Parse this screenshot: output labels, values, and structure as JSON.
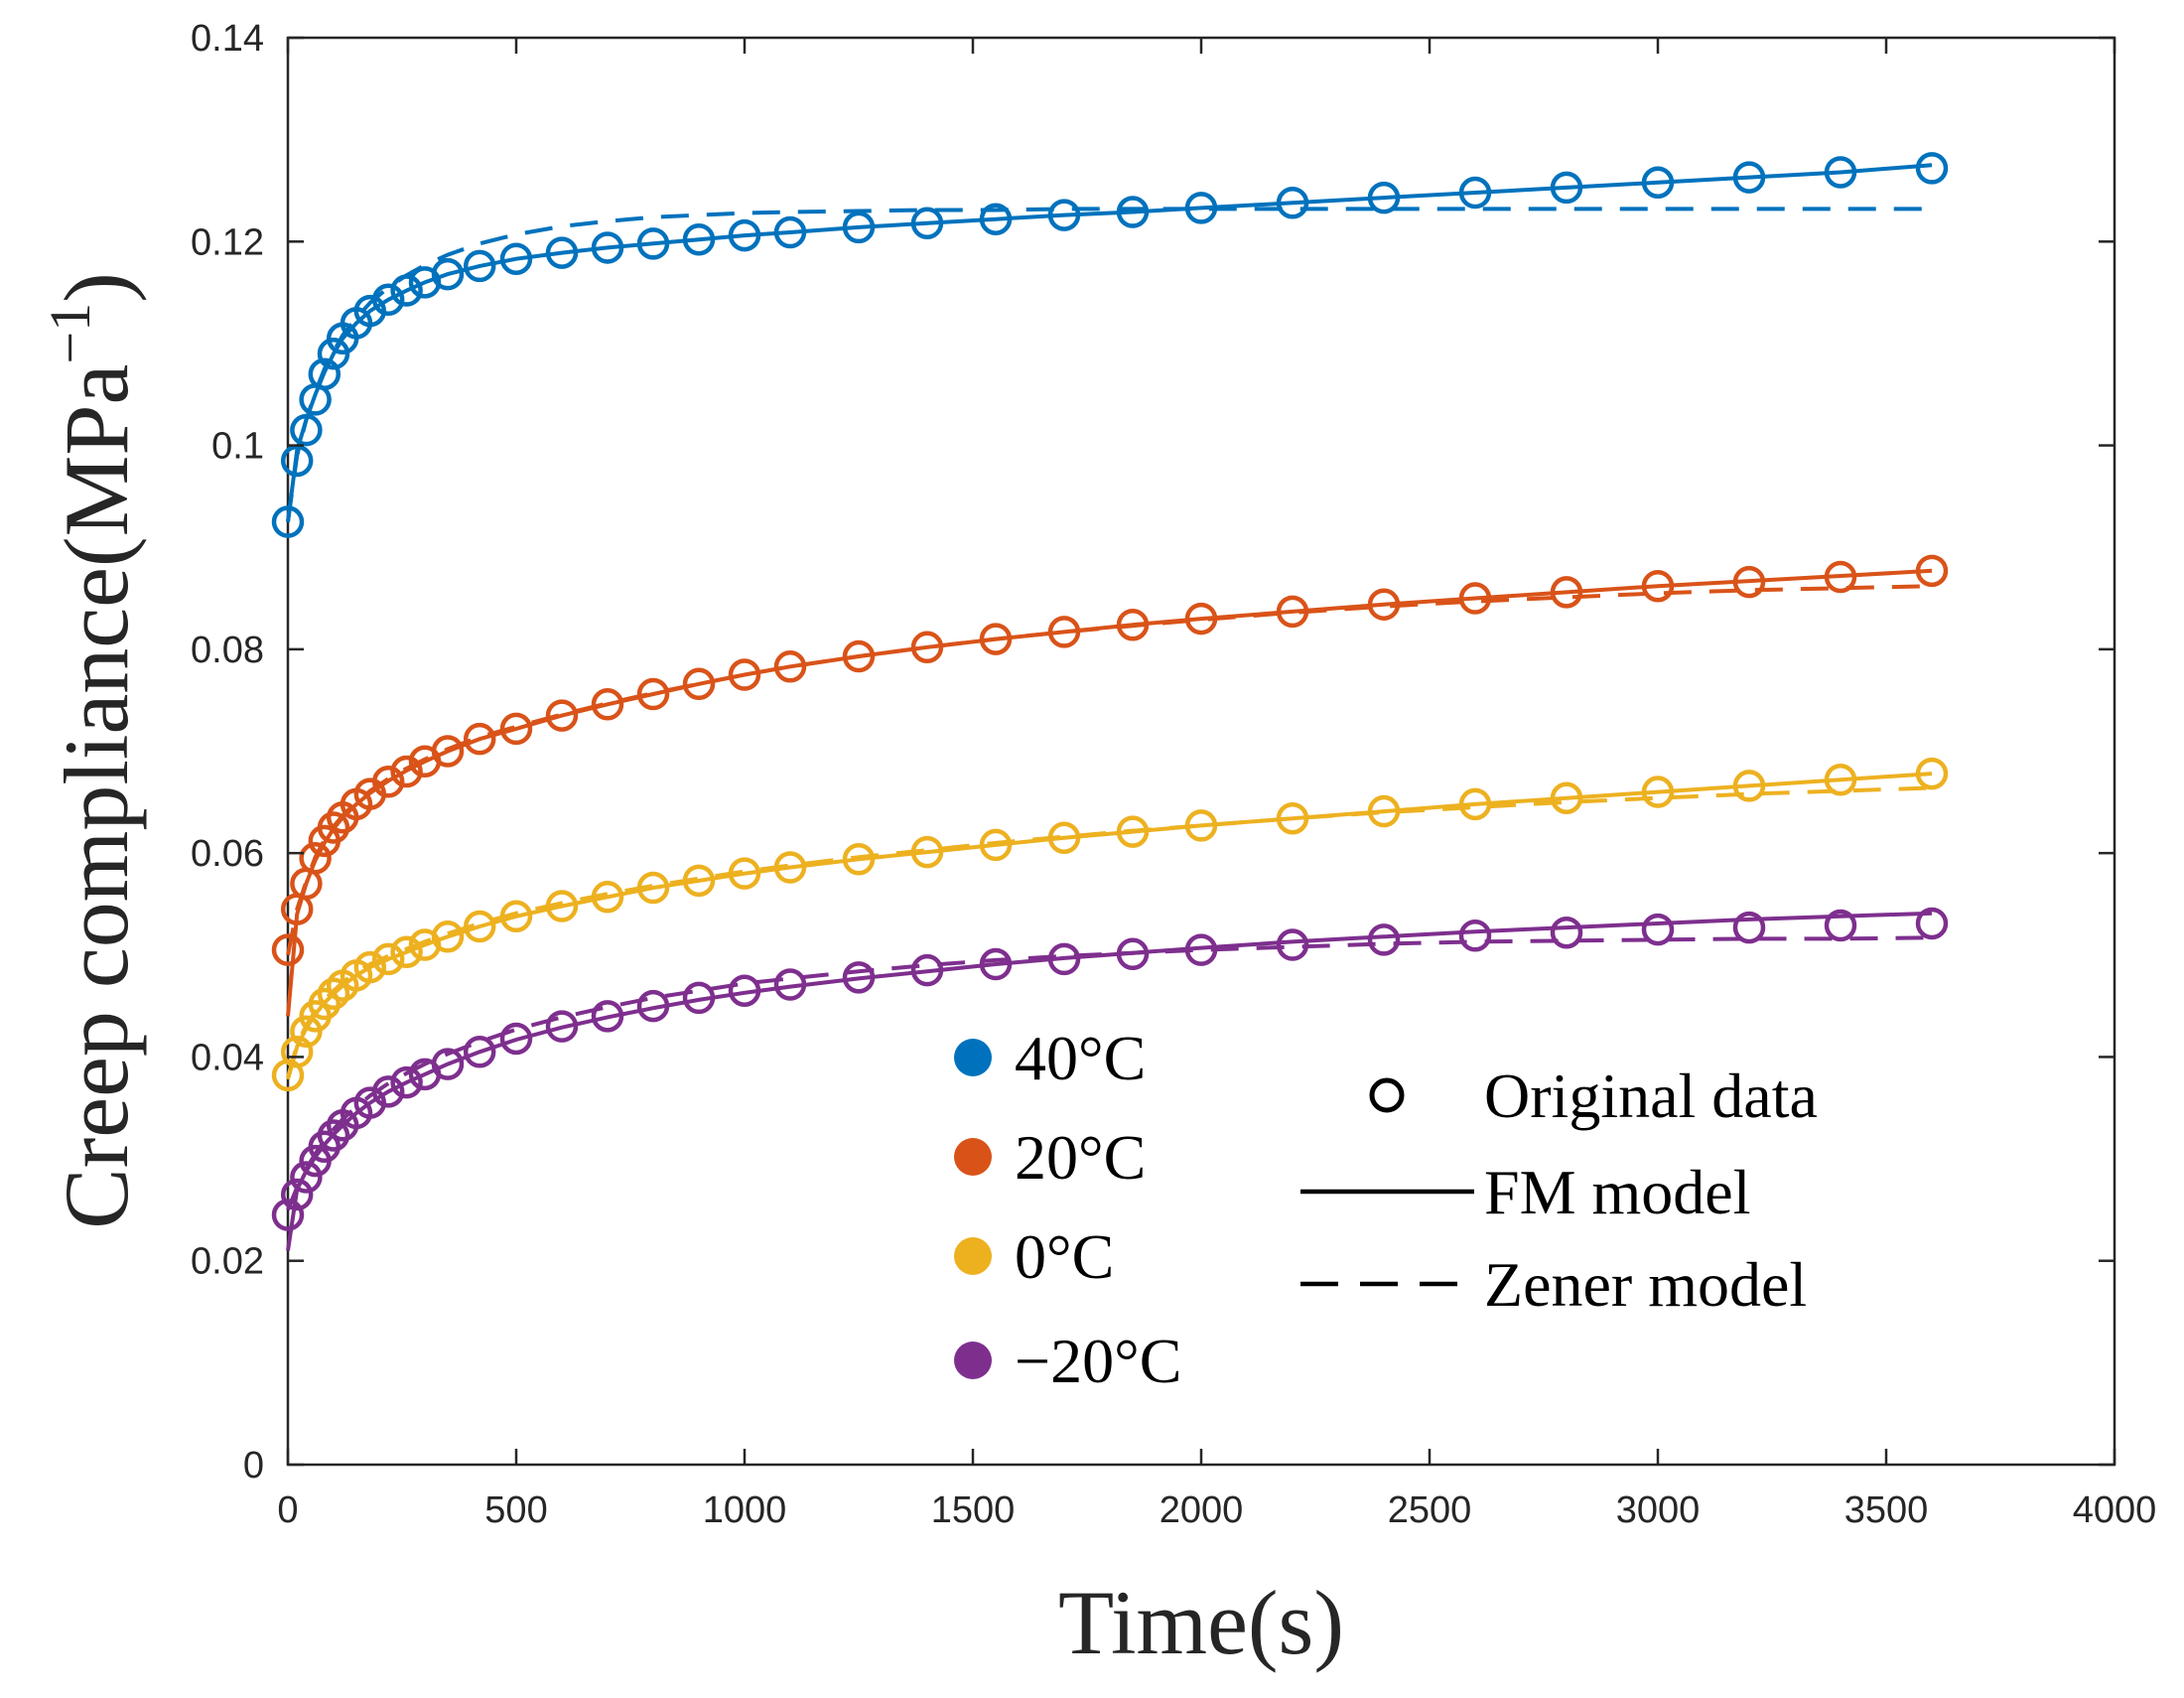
{
  "chart_data": {
    "type": "scatter",
    "xlabel": "Time(s)",
    "ylabel": "Creep compliance(MPa",
    "ylabel_sup": "−1",
    "ylabel_close": ")",
    "xlim": [
      0,
      4000
    ],
    "ylim": [
      0,
      0.14
    ],
    "xticks": [
      0,
      500,
      1000,
      1500,
      2000,
      2500,
      3000,
      3500,
      4000
    ],
    "xtick_labels": [
      "0",
      "500",
      "1000",
      "1500",
      "2000",
      "2500",
      "3000",
      "3500",
      "4000"
    ],
    "yticks": [
      0,
      0.02,
      0.04,
      0.06,
      0.08,
      0.1,
      0.12,
      0.14
    ],
    "ytick_labels": [
      "0",
      "0.02",
      "0.04",
      "0.06",
      "0.08",
      "0.1",
      "0.12",
      "0.14"
    ],
    "grid": false,
    "series": [
      {
        "name": "40°C",
        "color": "#0072BD",
        "data": {
          "t": [
            0,
            20,
            40,
            60,
            80,
            100,
            120,
            150,
            180,
            220,
            260,
            300,
            350,
            420,
            500,
            600,
            700,
            800,
            900,
            1000,
            1100,
            1250,
            1400,
            1550,
            1700,
            1850,
            2000,
            2200,
            2400,
            2600,
            2800,
            3000,
            3200,
            3400,
            3600
          ],
          "original": [
            0.0925,
            0.0985,
            0.1015,
            0.1045,
            0.107,
            0.109,
            0.1105,
            0.112,
            0.1132,
            0.1143,
            0.1152,
            0.116,
            0.1168,
            0.1176,
            0.1183,
            0.1189,
            0.1194,
            0.1198,
            0.1202,
            0.1206,
            0.1209,
            0.1214,
            0.1218,
            0.1222,
            0.1226,
            0.1229,
            0.1233,
            0.1238,
            0.1243,
            0.1248,
            0.1253,
            0.1258,
            0.1263,
            0.1268,
            0.1272
          ],
          "fm": [
            0.0925,
            0.0995,
            0.1025,
            0.105,
            0.1072,
            0.109,
            0.1105,
            0.112,
            0.1132,
            0.1143,
            0.1152,
            0.116,
            0.1168,
            0.1176,
            0.1183,
            0.1189,
            0.1194,
            0.1198,
            0.1202,
            0.1206,
            0.1209,
            0.1214,
            0.1218,
            0.1222,
            0.1226,
            0.1229,
            0.1233,
            0.1238,
            0.1243,
            0.1248,
            0.1253,
            0.1258,
            0.1263,
            0.1268,
            0.1275
          ],
          "zener": [
            0.0925,
            0.099,
            0.1025,
            0.1052,
            0.1075,
            0.1092,
            0.1108,
            0.1125,
            0.114,
            0.1155,
            0.1167,
            0.1177,
            0.1187,
            0.1198,
            0.1207,
            0.1215,
            0.122,
            0.1224,
            0.1226,
            0.1228,
            0.1229,
            0.123,
            0.1231,
            0.1231,
            0.1232,
            0.1232,
            0.1232,
            0.1232,
            0.1232,
            0.1232,
            0.1232,
            0.1232,
            0.1232,
            0.1232,
            0.1232
          ]
        }
      },
      {
        "name": "20°C",
        "color": "#D95319",
        "data": {
          "t": [
            0,
            20,
            40,
            60,
            80,
            100,
            120,
            150,
            180,
            220,
            260,
            300,
            350,
            420,
            500,
            600,
            700,
            800,
            900,
            1000,
            1100,
            1250,
            1400,
            1550,
            1700,
            1850,
            2000,
            2200,
            2400,
            2600,
            2800,
            3000,
            3200,
            3400,
            3600
          ],
          "original": [
            0.0505,
            0.0545,
            0.057,
            0.0595,
            0.0612,
            0.0625,
            0.0635,
            0.0648,
            0.0658,
            0.067,
            0.068,
            0.069,
            0.07,
            0.0712,
            0.0722,
            0.0735,
            0.0746,
            0.0756,
            0.0766,
            0.0775,
            0.0783,
            0.0793,
            0.0802,
            0.081,
            0.0817,
            0.0824,
            0.083,
            0.0837,
            0.0844,
            0.085,
            0.0856,
            0.0862,
            0.0866,
            0.0871,
            0.0877
          ],
          "fm": [
            0.044,
            0.054,
            0.057,
            0.0593,
            0.061,
            0.0624,
            0.0635,
            0.0648,
            0.0659,
            0.0671,
            0.0681,
            0.069,
            0.07,
            0.0712,
            0.0722,
            0.0735,
            0.0746,
            0.0756,
            0.0766,
            0.0775,
            0.0783,
            0.0793,
            0.0802,
            0.081,
            0.0817,
            0.0824,
            0.083,
            0.0837,
            0.0844,
            0.085,
            0.0856,
            0.0862,
            0.0867,
            0.0872,
            0.0877
          ],
          "zener": [
            0.05,
            0.0545,
            0.0572,
            0.0596,
            0.0613,
            0.0626,
            0.0637,
            0.065,
            0.0661,
            0.0673,
            0.0683,
            0.0692,
            0.0702,
            0.0714,
            0.0724,
            0.0736,
            0.0747,
            0.0757,
            0.0766,
            0.0775,
            0.0783,
            0.0793,
            0.0802,
            0.081,
            0.0817,
            0.0823,
            0.0829,
            0.0836,
            0.0842,
            0.0847,
            0.0851,
            0.0855,
            0.0858,
            0.086,
            0.0862
          ]
        }
      },
      {
        "name": "0°C",
        "color": "#EDB120",
        "data": {
          "t": [
            0,
            20,
            40,
            60,
            80,
            100,
            120,
            150,
            180,
            220,
            260,
            300,
            350,
            420,
            500,
            600,
            700,
            800,
            900,
            1000,
            1100,
            1250,
            1400,
            1550,
            1700,
            1850,
            2000,
            2200,
            2400,
            2600,
            2800,
            3000,
            3200,
            3400,
            3600
          ],
          "original": [
            0.0382,
            0.0405,
            0.0425,
            0.044,
            0.0452,
            0.0462,
            0.047,
            0.048,
            0.0488,
            0.0496,
            0.0503,
            0.051,
            0.0518,
            0.0528,
            0.0538,
            0.0548,
            0.0557,
            0.0566,
            0.0573,
            0.058,
            0.0586,
            0.0594,
            0.0601,
            0.0608,
            0.0615,
            0.0621,
            0.0627,
            0.0634,
            0.0641,
            0.0648,
            0.0654,
            0.066,
            0.0666,
            0.0672,
            0.0678
          ],
          "fm": [
            0.0378,
            0.041,
            0.0428,
            0.0442,
            0.0453,
            0.0462,
            0.047,
            0.048,
            0.0488,
            0.0496,
            0.0503,
            0.051,
            0.0518,
            0.0528,
            0.0538,
            0.0548,
            0.0557,
            0.0566,
            0.0573,
            0.058,
            0.0586,
            0.0594,
            0.0601,
            0.0608,
            0.0615,
            0.0621,
            0.0627,
            0.0634,
            0.0641,
            0.0648,
            0.0654,
            0.066,
            0.0666,
            0.0672,
            0.0678
          ],
          "zener": [
            0.038,
            0.0412,
            0.0431,
            0.0445,
            0.0456,
            0.0465,
            0.0473,
            0.0483,
            0.0491,
            0.0499,
            0.0506,
            0.0513,
            0.0521,
            0.0531,
            0.0541,
            0.0551,
            0.056,
            0.0568,
            0.0575,
            0.0582,
            0.0588,
            0.0596,
            0.0603,
            0.061,
            0.0616,
            0.0622,
            0.0627,
            0.0634,
            0.064,
            0.0645,
            0.065,
            0.0654,
            0.0658,
            0.0661,
            0.0664
          ]
        }
      },
      {
        "name": "−20°C",
        "color": "#7E2F8E",
        "data": {
          "t": [
            0,
            20,
            40,
            60,
            80,
            100,
            120,
            150,
            180,
            220,
            260,
            300,
            350,
            420,
            500,
            600,
            700,
            800,
            900,
            1000,
            1100,
            1250,
            1400,
            1550,
            1700,
            1850,
            2000,
            2200,
            2400,
            2600,
            2800,
            3000,
            3200,
            3400,
            3600
          ],
          "original": [
            0.0245,
            0.0265,
            0.0282,
            0.0298,
            0.0312,
            0.0323,
            0.0333,
            0.0345,
            0.0355,
            0.0366,
            0.0375,
            0.0383,
            0.0393,
            0.0405,
            0.0418,
            0.043,
            0.044,
            0.045,
            0.0458,
            0.0465,
            0.0471,
            0.0478,
            0.0485,
            0.0491,
            0.0496,
            0.0501,
            0.0505,
            0.051,
            0.0515,
            0.0519,
            0.0522,
            0.0525,
            0.0527,
            0.0529,
            0.0531
          ],
          "fm": [
            0.021,
            0.027,
            0.0288,
            0.0302,
            0.0314,
            0.0324,
            0.0333,
            0.0345,
            0.0355,
            0.0366,
            0.0375,
            0.0383,
            0.0393,
            0.0405,
            0.0417,
            0.0429,
            0.0439,
            0.0448,
            0.0456,
            0.0463,
            0.0469,
            0.0477,
            0.0484,
            0.0491,
            0.0497,
            0.0502,
            0.0507,
            0.0513,
            0.0518,
            0.0523,
            0.0527,
            0.0531,
            0.0535,
            0.0538,
            0.0541
          ],
          "zener": [
            0.025,
            0.0272,
            0.029,
            0.0305,
            0.0318,
            0.0329,
            0.0339,
            0.0351,
            0.0362,
            0.0374,
            0.0384,
            0.0393,
            0.0403,
            0.0415,
            0.0427,
            0.0439,
            0.0449,
            0.0458,
            0.0465,
            0.0472,
            0.0477,
            0.0484,
            0.049,
            0.0495,
            0.0499,
            0.0502,
            0.0505,
            0.0508,
            0.0511,
            0.0513,
            0.0514,
            0.0515,
            0.0516,
            0.0516,
            0.0517
          ]
        }
      }
    ],
    "legend_temperature": {
      "placement": "bottom-center",
      "entries": [
        "40°C",
        "20°C",
        "0°C",
        "−20°C"
      ]
    },
    "legend_model": {
      "placement": "bottom-right",
      "entries": [
        "Original data",
        "FM model",
        "Zener model"
      ]
    }
  }
}
